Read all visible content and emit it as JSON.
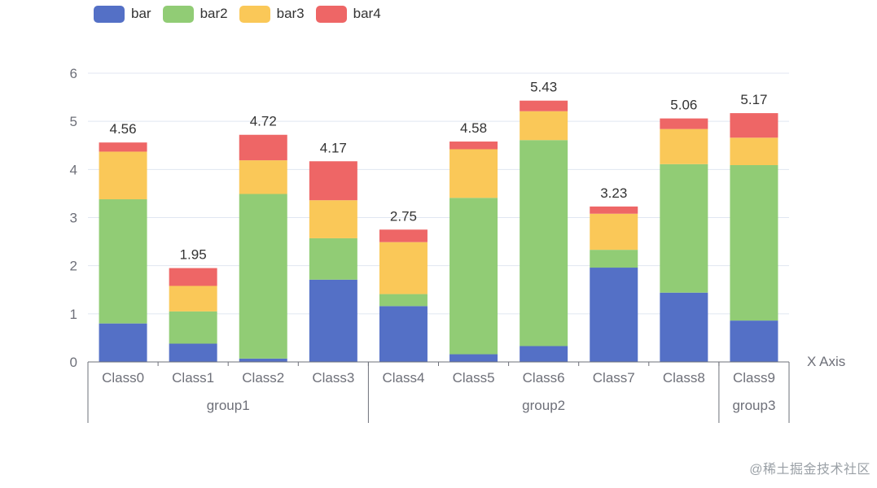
{
  "chart_data": {
    "type": "bar",
    "stacked": true,
    "legend": {
      "position": "top-left",
      "entries": [
        "bar",
        "bar2",
        "bar3",
        "bar4"
      ]
    },
    "categories": [
      "Class0",
      "Class1",
      "Class2",
      "Class3",
      "Class4",
      "Class5",
      "Class6",
      "Class7",
      "Class8",
      "Class9"
    ],
    "groups": [
      {
        "label": "group1",
        "span": 4
      },
      {
        "label": "group2",
        "span": 5
      },
      {
        "label": "group3",
        "span": 1
      }
    ],
    "series": [
      {
        "name": "bar",
        "color": "#5470c6",
        "values": [
          0.8,
          0.38,
          0.07,
          1.71,
          1.16,
          0.16,
          0.33,
          1.96,
          1.44,
          0.86
        ]
      },
      {
        "name": "bar2",
        "color": "#91cc75",
        "values": [
          2.58,
          0.67,
          3.42,
          0.86,
          0.25,
          3.25,
          4.28,
          0.37,
          2.67,
          3.23
        ]
      },
      {
        "name": "bar3",
        "color": "#fac858",
        "values": [
          0.99,
          0.53,
          0.7,
          0.79,
          1.08,
          1.01,
          0.6,
          0.75,
          0.73,
          0.57
        ]
      },
      {
        "name": "bar4",
        "color": "#ee6666",
        "values": [
          0.19,
          0.37,
          0.53,
          0.81,
          0.26,
          0.16,
          0.22,
          0.15,
          0.22,
          0.51
        ]
      }
    ],
    "totals": [
      "4.56",
      "1.95",
      "4.72",
      "4.17",
      "2.75",
      "4.58",
      "5.43",
      "3.23",
      "5.06",
      "5.17"
    ],
    "xlabel": "X Axis",
    "ylabel": "",
    "ylim": [
      0,
      6
    ],
    "yticks": [
      "0",
      "1",
      "2",
      "3",
      "4",
      "5",
      "6"
    ],
    "grid": true,
    "axis_color": "#6e7079",
    "grid_color": "#e0e6f1",
    "label_color": "#333333",
    "tick_color": "#6e7079"
  },
  "watermark": "@稀土掘金技术社区"
}
